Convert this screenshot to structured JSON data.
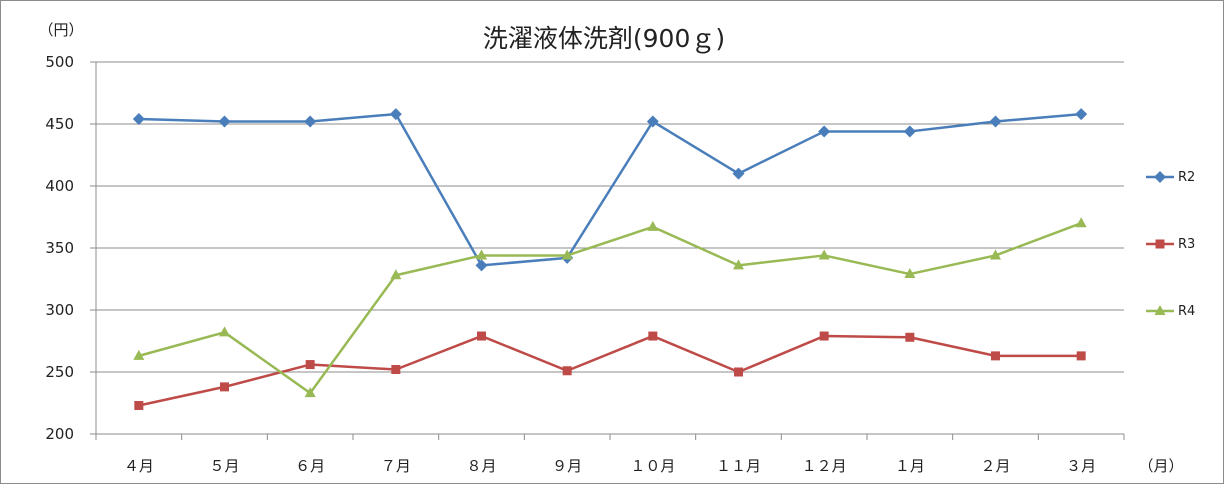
{
  "chart_data": {
    "type": "line",
    "title": "洗濯液体洗剤(900ｇ)",
    "ylabel": "（円）",
    "xlabel": "（月）",
    "ylim": [
      200,
      500
    ],
    "yticks": [
      200,
      250,
      300,
      350,
      400,
      450,
      500
    ],
    "grid": true,
    "legend_position": "right",
    "categories": [
      "４月",
      "５月",
      "６月",
      "７月",
      "８月",
      "９月",
      "１０月",
      "１１月",
      "１２月",
      "１月",
      "２月",
      "３月"
    ],
    "series": [
      {
        "name": "R2",
        "color": "#4a7ebb",
        "marker": "diamond",
        "values": [
          454,
          452,
          452,
          458,
          336,
          342,
          452,
          410,
          444,
          444,
          452,
          458
        ]
      },
      {
        "name": "R3",
        "color": "#be4b48",
        "marker": "square",
        "values": [
          223,
          238,
          256,
          252,
          279,
          251,
          279,
          250,
          279,
          278,
          263,
          263
        ]
      },
      {
        "name": "R4",
        "color": "#98b954",
        "marker": "triangle",
        "values": [
          263,
          282,
          233,
          328,
          344,
          344,
          367,
          336,
          344,
          329,
          344,
          370
        ]
      }
    ]
  }
}
